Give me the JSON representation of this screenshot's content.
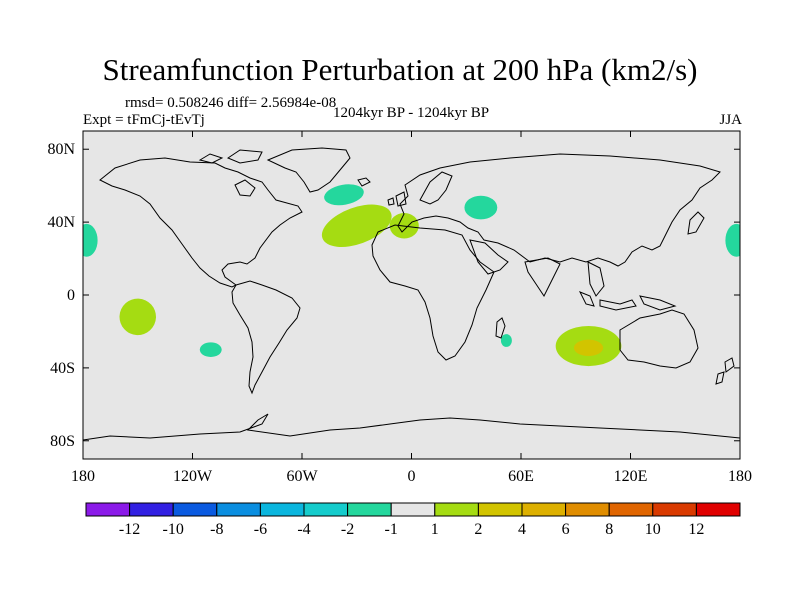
{
  "title": "Streamfunction Perturbation at 200 hPa (km2/s)",
  "stats_line": "rmsd= 0.508246 diff= 2.56984e-08",
  "experiment": "Expt = tFmCj-tEvTj",
  "period": "1204kyr BP - 1204kyr BP",
  "season": "JJA",
  "map": {
    "lon_range": [
      -180,
      180
    ],
    "lat_range": [
      -90,
      90
    ],
    "x_ticks": [
      {
        "lon": -180,
        "label": "180"
      },
      {
        "lon": -120,
        "label": "120W"
      },
      {
        "lon": -60,
        "label": "60W"
      },
      {
        "lon": 0,
        "label": "0"
      },
      {
        "lon": 60,
        "label": "60E"
      },
      {
        "lon": 120,
        "label": "120E"
      },
      {
        "lon": 180,
        "label": "180"
      }
    ],
    "y_ticks": [
      {
        "lat": 80,
        "label": "80N"
      },
      {
        "lat": 40,
        "label": "40N"
      },
      {
        "lat": 0,
        "label": "0"
      },
      {
        "lat": -40,
        "label": "40S"
      },
      {
        "lat": -80,
        "label": "80S"
      }
    ],
    "background_color": "#e6e6e6",
    "anomalies": [
      {
        "name": "north-atlantic-positive",
        "category": "1 to 2",
        "color": "#a5dc12",
        "lon": -30,
        "lat": 38,
        "rlon": 20,
        "rlat": 10,
        "rot": -20
      },
      {
        "name": "mediterranean-positive",
        "category": "1 to 2",
        "color": "#a5dc12",
        "lon": -4,
        "lat": 38,
        "rlon": 8,
        "rlat": 7,
        "rot": 0
      },
      {
        "name": "south-pacific-positive",
        "category": "1 to 2",
        "color": "#a5dc12",
        "lon": -150,
        "lat": -12,
        "rlon": 10,
        "rlat": 10,
        "rot": -20
      },
      {
        "name": "indian-ocean-positive",
        "category": "1 to 2",
        "color": "#a5dc12",
        "lon": 97,
        "lat": -28,
        "rlon": 18,
        "rlat": 11,
        "rot": 0
      },
      {
        "name": "indian-ocean-core",
        "category": "2 to 4",
        "color": "#d2c400",
        "lon": 97,
        "lat": -29,
        "rlon": 8,
        "rlat": 4.5,
        "rot": 0
      },
      {
        "name": "greenland-sea-negative",
        "category": "-2 to -1",
        "color": "#24d79d",
        "lon": -37,
        "lat": 55,
        "rlon": 11,
        "rlat": 5.5,
        "rot": -10
      },
      {
        "name": "black-sea-negative",
        "category": "-2 to -1",
        "color": "#24d79d",
        "lon": 38,
        "lat": 48,
        "rlon": 9,
        "rlat": 6.5,
        "rot": 0
      },
      {
        "name": "dateline-west-negative",
        "category": "-2 to -1",
        "color": "#24d79d",
        "lon": -178,
        "lat": 30,
        "rlon": 6,
        "rlat": 9,
        "rot": 0
      },
      {
        "name": "dateline-east-negative",
        "category": "-2 to -1",
        "color": "#24d79d",
        "lon": 178,
        "lat": 30,
        "rlon": 6,
        "rlat": 9,
        "rot": 0
      },
      {
        "name": "southeast-pacific-negative",
        "category": "-2 to -1",
        "color": "#24d79d",
        "lon": -110,
        "lat": -30,
        "rlon": 6,
        "rlat": 4,
        "rot": 0
      },
      {
        "name": "madagascar-negative",
        "category": "-2 to -1",
        "color": "#24d79d",
        "lon": 52,
        "lat": -25,
        "rlon": 3,
        "rlat": 3.5,
        "rot": 0
      }
    ]
  },
  "colorbar": {
    "colors": [
      "#8b1ae8",
      "#3220e2",
      "#0a5ae0",
      "#0a8ee0",
      "#0bb6de",
      "#15cccc",
      "#24d79d",
      "#e6e6e6",
      "#a5dc12",
      "#d2c400",
      "#ddb000",
      "#e08d00",
      "#e06500",
      "#d93a00",
      "#e00000"
    ],
    "labels": [
      "-12",
      "-10",
      "-8",
      "-6",
      "-4",
      "-2",
      "-1",
      "1",
      "2",
      "4",
      "6",
      "8",
      "10",
      "12"
    ]
  }
}
